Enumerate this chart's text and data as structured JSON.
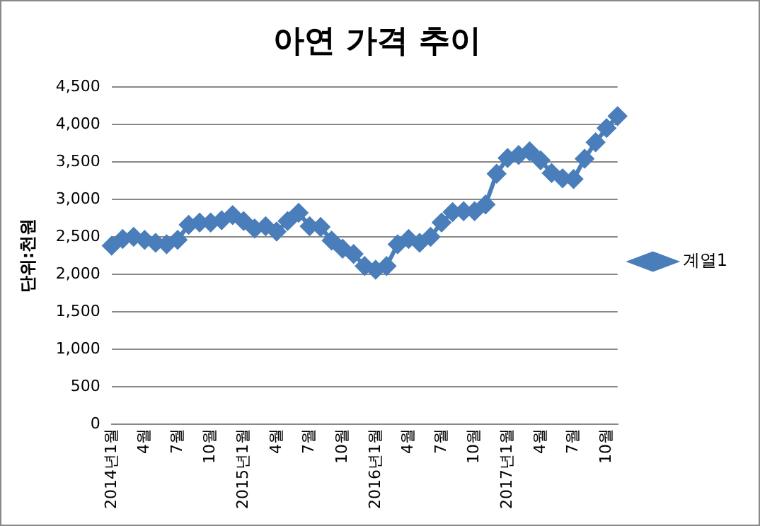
{
  "chart_data": {
    "type": "line",
    "title": "아연 가격 추이",
    "ylabel": "단위:천원",
    "categories": [
      "2014년1월",
      null,
      null,
      "4월",
      null,
      null,
      "7월",
      null,
      null,
      "10월",
      null,
      null,
      "2015년1월",
      null,
      null,
      "4월",
      null,
      null,
      "7월",
      null,
      null,
      "10월",
      null,
      null,
      "2016년1월",
      null,
      null,
      "4월",
      null,
      null,
      "7월",
      null,
      null,
      "10월",
      null,
      null,
      "2017년1월",
      null,
      null,
      "4월",
      null,
      null,
      "7월",
      null,
      null,
      "10월",
      null
    ],
    "series": [
      {
        "name": "계열1",
        "color": "#4a7ebb",
        "values": [
          2380,
          2470,
          2500,
          2460,
          2420,
          2400,
          2460,
          2660,
          2690,
          2690,
          2720,
          2790,
          2710,
          2610,
          2640,
          2570,
          2710,
          2820,
          2640,
          2630,
          2450,
          2340,
          2270,
          2110,
          2060,
          2110,
          2400,
          2470,
          2420,
          2500,
          2690,
          2830,
          2840,
          2840,
          2930,
          3340,
          3550,
          3590,
          3640,
          3520,
          3350,
          3280,
          3270,
          3540,
          3760,
          3950,
          4110
        ]
      }
    ],
    "ylim": [
      0,
      4500
    ],
    "yticks": [
      {
        "value": 0,
        "label": "0"
      },
      {
        "value": 500,
        "label": "500"
      },
      {
        "value": 1000,
        "label": "1,000"
      },
      {
        "value": 1500,
        "label": "1,500"
      },
      {
        "value": 2000,
        "label": "2,000"
      },
      {
        "value": 2500,
        "label": "2,500"
      },
      {
        "value": 3000,
        "label": "3,000"
      },
      {
        "value": 3500,
        "label": "3,500"
      },
      {
        "value": 4000,
        "label": "4,000"
      },
      {
        "value": 4500,
        "label": "4,500"
      }
    ],
    "grid": "y",
    "legend": "right",
    "marker": "diamond",
    "line_style": "solid"
  }
}
